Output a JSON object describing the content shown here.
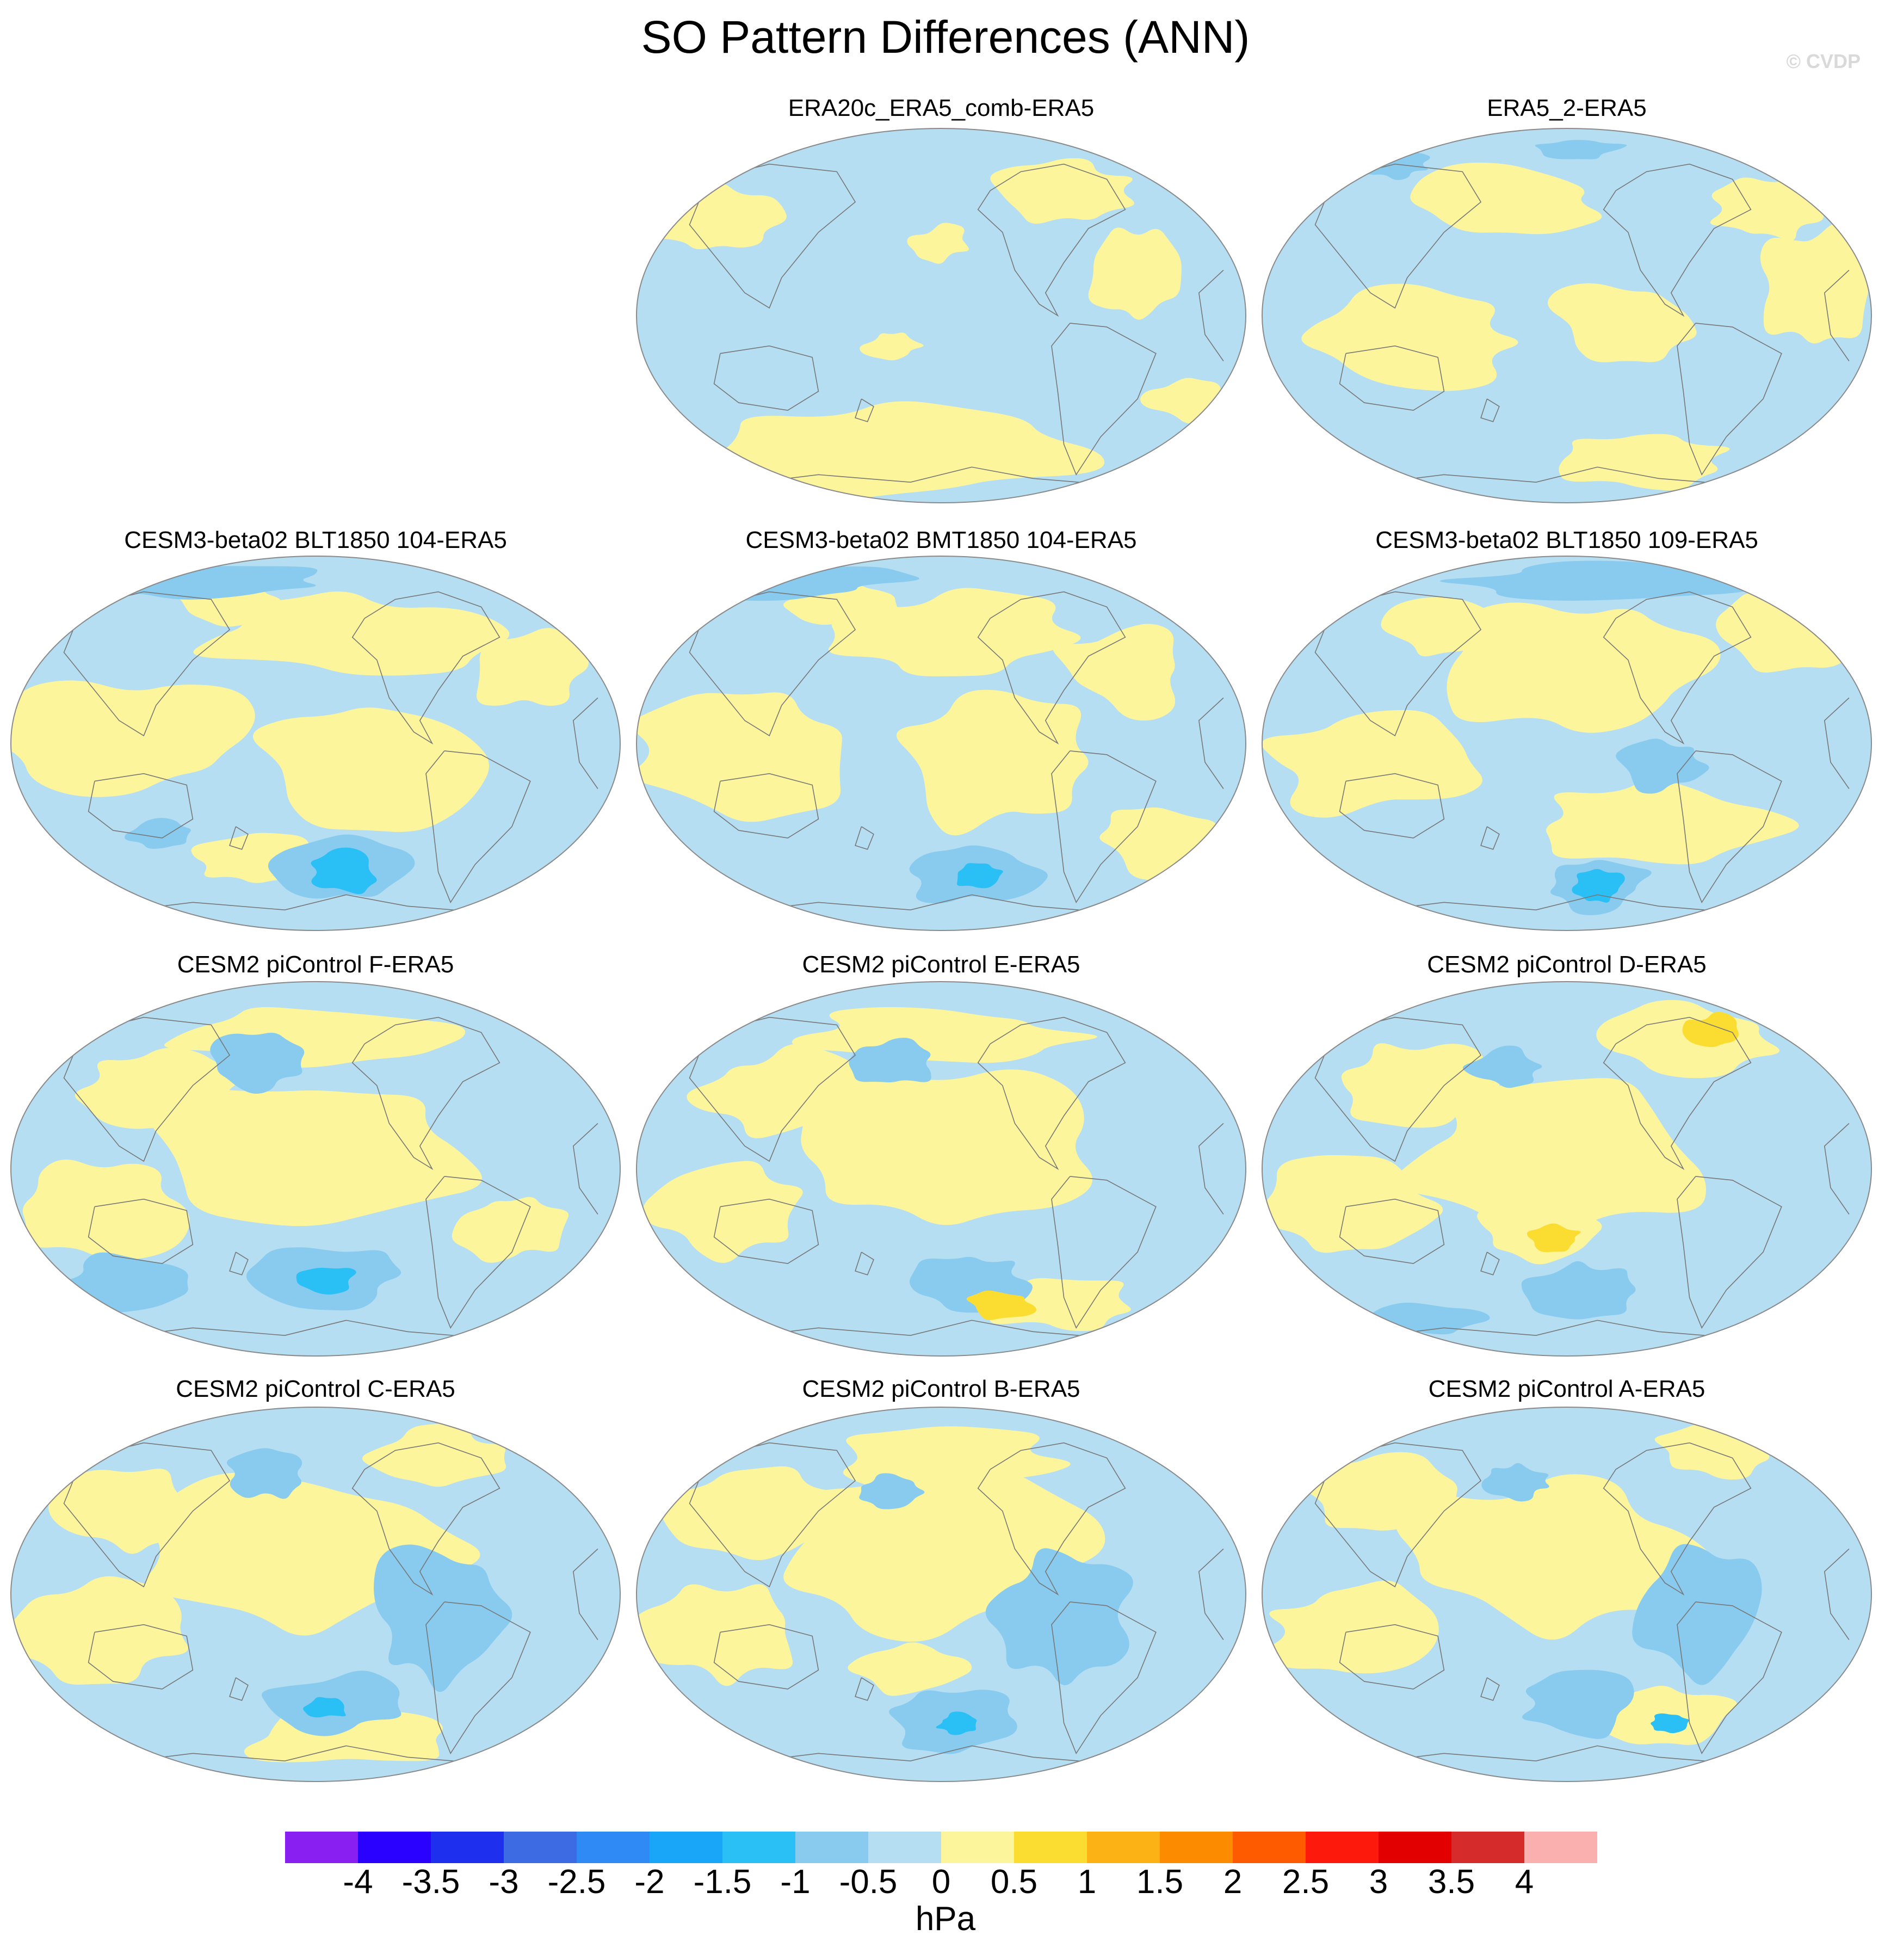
{
  "title": "SO Pattern Differences (ANN)",
  "credit": "© CVDP",
  "panels": [
    {
      "title": "ERA20c_ERA5_comb-ERA5",
      "variant": 0
    },
    {
      "title": "ERA5_2-ERA5",
      "variant": 1
    },
    {
      "title": "CESM3-beta02 BLT1850 104-ERA5",
      "variant": 2
    },
    {
      "title": "CESM3-beta02 BMT1850 104-ERA5",
      "variant": 3
    },
    {
      "title": "CESM3-beta02 BLT1850 109-ERA5",
      "variant": 4
    },
    {
      "title": "CESM2 piControl F-ERA5",
      "variant": 5
    },
    {
      "title": "CESM2 piControl E-ERA5",
      "variant": 6
    },
    {
      "title": "CESM2 piControl D-ERA5",
      "variant": 7
    },
    {
      "title": "CESM2 piControl C-ERA5",
      "variant": 8
    },
    {
      "title": "CESM2 piControl B-ERA5",
      "variant": 9
    },
    {
      "title": "CESM2 piControl A-ERA5",
      "variant": 10
    }
  ],
  "colorbar": {
    "units": "hPa",
    "labels": [
      "-4",
      "-3.5",
      "-3",
      "-2.5",
      "-2",
      "-1.5",
      "-1",
      "-0.5",
      "0",
      "0.5",
      "1",
      "1.5",
      "2",
      "2.5",
      "3",
      "3.5",
      "4"
    ],
    "colors": [
      "#8a1ff2",
      "#2a00ff",
      "#1e2fee",
      "#3c6be4",
      "#2f8af5",
      "#19a6f8",
      "#2ac0f5",
      "#88cbef",
      "#b5def2",
      "#fdf59c",
      "#fbdd32",
      "#fcb214",
      "#fd8b00",
      "#fe5a00",
      "#fd1a0c",
      "#e20000",
      "#d52b2b",
      "#fbb0b0"
    ]
  },
  "colors": {
    "ocean_base": "#b5def2",
    "positive_light": "#fdf59c",
    "positive_mid": "#fbdd32",
    "negative_mid": "#88cbef",
    "negative_strong": "#2ac0f5",
    "coastline": "#777777"
  }
}
